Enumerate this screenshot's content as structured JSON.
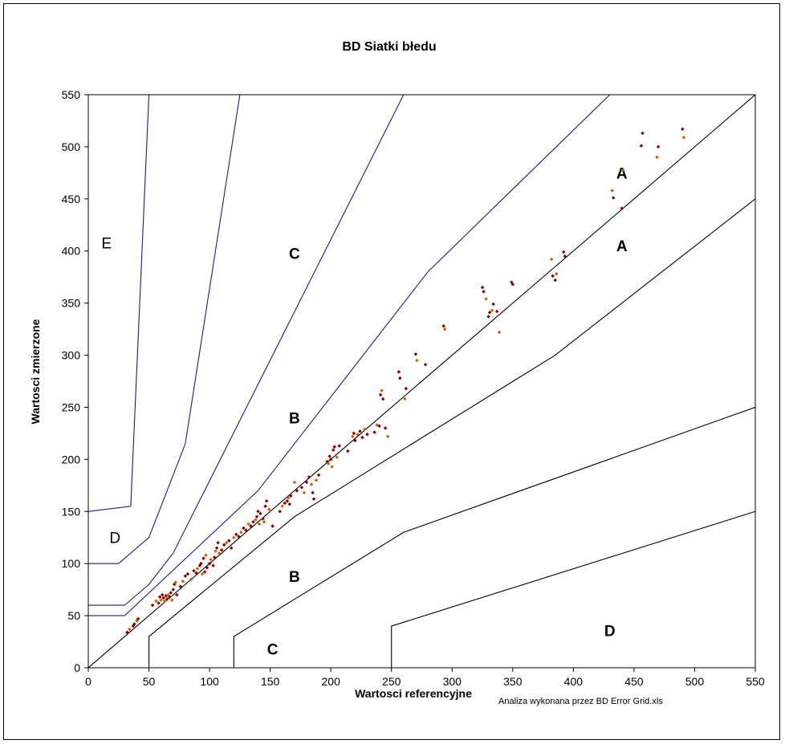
{
  "chart_data": {
    "type": "scatter",
    "title": "BD Siatki błedu",
    "xlabel": "Wartosci referencyjne",
    "ylabel": "Wartosci zmierzone",
    "footnote": "Analiza wykonana przez BD Error Grid.xls",
    "xlim": [
      0,
      550
    ],
    "ylim": [
      0,
      550
    ],
    "xticks": [
      0,
      50,
      100,
      150,
      200,
      250,
      300,
      350,
      400,
      450,
      500,
      550
    ],
    "yticks": [
      0,
      50,
      100,
      150,
      200,
      250,
      300,
      350,
      400,
      450,
      500,
      550
    ],
    "colors": {
      "grid_blue": "#1a1a8c",
      "grid_black": "#000000",
      "point_dark": "#8b0000",
      "point_light": "#c86400"
    },
    "zone_lines": [
      {
        "name": "upper-e",
        "color": "blue",
        "points": [
          [
            0,
            150
          ],
          [
            35,
            155
          ],
          [
            50,
            550
          ]
        ]
      },
      {
        "name": "upper-d",
        "color": "blue",
        "points": [
          [
            0,
            100
          ],
          [
            25,
            100
          ],
          [
            50,
            125
          ],
          [
            80,
            215
          ],
          [
            125,
            550
          ]
        ]
      },
      {
        "name": "upper-c",
        "color": "blue",
        "points": [
          [
            0,
            60
          ],
          [
            30,
            60
          ],
          [
            50,
            80
          ],
          [
            70,
            110
          ],
          [
            260,
            550
          ]
        ]
      },
      {
        "name": "upper-b",
        "color": "blue",
        "points": [
          [
            0,
            50
          ],
          [
            30,
            50
          ],
          [
            140,
            170
          ],
          [
            280,
            380
          ],
          [
            430,
            550
          ]
        ]
      },
      {
        "name": "upper-a",
        "color": "black",
        "points": [
          [
            0,
            0
          ],
          [
            550,
            550
          ]
        ]
      },
      {
        "name": "lower-a",
        "color": "black",
        "points": [
          [
            50,
            0
          ],
          [
            50,
            30
          ],
          [
            170,
            145
          ],
          [
            385,
            300
          ],
          [
            550,
            450
          ]
        ]
      },
      {
        "name": "lower-b",
        "color": "black",
        "points": [
          [
            120,
            0
          ],
          [
            120,
            30
          ],
          [
            260,
            130
          ],
          [
            550,
            250
          ]
        ]
      },
      {
        "name": "lower-c",
        "color": "black",
        "points": [
          [
            120,
            0
          ],
          [
            250,
            0
          ]
        ]
      },
      {
        "name": "lower-d",
        "color": "black",
        "points": [
          [
            250,
            0
          ],
          [
            250,
            40
          ],
          [
            550,
            150
          ]
        ]
      }
    ],
    "zone_labels": [
      {
        "text": "E",
        "x": 15,
        "y": 408,
        "bold": false
      },
      {
        "text": "D",
        "x": 22,
        "y": 125,
        "bold": false
      },
      {
        "text": "C",
        "x": 170,
        "y": 398,
        "bold": true
      },
      {
        "text": "B",
        "x": 170,
        "y": 240,
        "bold": true
      },
      {
        "text": "A",
        "x": 440,
        "y": 475,
        "bold": true
      },
      {
        "text": "A",
        "x": 440,
        "y": 405,
        "bold": true
      },
      {
        "text": "B",
        "x": 170,
        "y": 88,
        "bold": true
      },
      {
        "text": "C",
        "x": 152,
        "y": 18,
        "bold": true
      },
      {
        "text": "D",
        "x": 430,
        "y": 36,
        "bold": true
      }
    ],
    "series": [
      {
        "points": [
          [
            32,
            34
          ],
          [
            34,
            37
          ],
          [
            37,
            40
          ],
          [
            38,
            42
          ],
          [
            40,
            45
          ],
          [
            41,
            47
          ],
          [
            53,
            60
          ],
          [
            56,
            64
          ],
          [
            58,
            62
          ],
          [
            59,
            68
          ],
          [
            60,
            65
          ],
          [
            61,
            70
          ],
          [
            62,
            67
          ],
          [
            63,
            64
          ],
          [
            64,
            69
          ],
          [
            65,
            66
          ],
          [
            66,
            70
          ],
          [
            67,
            68
          ],
          [
            68,
            72
          ],
          [
            69,
            65
          ],
          [
            70,
            75
          ],
          [
            71,
            80
          ],
          [
            72,
            82
          ],
          [
            73,
            70
          ],
          [
            76,
            78
          ],
          [
            78,
            83
          ],
          [
            80,
            88
          ],
          [
            82,
            90
          ],
          [
            85,
            85
          ],
          [
            87,
            93
          ],
          [
            89,
            91
          ],
          [
            90,
            95
          ],
          [
            92,
            98
          ],
          [
            93,
            100
          ],
          [
            94,
            90
          ],
          [
            95,
            105
          ],
          [
            96,
            92
          ],
          [
            97,
            108
          ],
          [
            98,
            96
          ],
          [
            100,
            100
          ],
          [
            101,
            104
          ],
          [
            103,
            98
          ],
          [
            104,
            106
          ],
          [
            105,
            112
          ],
          [
            106,
            115
          ],
          [
            107,
            120
          ],
          [
            108,
            110
          ],
          [
            110,
            113
          ],
          [
            112,
            118
          ],
          [
            114,
            120
          ],
          [
            116,
            122
          ],
          [
            118,
            115
          ],
          [
            120,
            125
          ],
          [
            122,
            128
          ],
          [
            124,
            126
          ],
          [
            126,
            130
          ],
          [
            128,
            134
          ],
          [
            130,
            132
          ],
          [
            132,
            138
          ],
          [
            134,
            136
          ],
          [
            136,
            140
          ],
          [
            138,
            142
          ],
          [
            139,
            145
          ],
          [
            140,
            150
          ],
          [
            141,
            138
          ],
          [
            142,
            148
          ],
          [
            144,
            143
          ],
          [
            145,
            140
          ],
          [
            146,
            155
          ],
          [
            147,
            160
          ],
          [
            149,
            152
          ],
          [
            152,
            136
          ],
          [
            158,
            150
          ],
          [
            160,
            155
          ],
          [
            162,
            158
          ],
          [
            164,
            160
          ],
          [
            165,
            163
          ],
          [
            166,
            157
          ],
          [
            167,
            165
          ],
          [
            170,
            178
          ],
          [
            172,
            170
          ],
          [
            176,
            173
          ],
          [
            178,
            168
          ],
          [
            180,
            178
          ],
          [
            182,
            183
          ],
          [
            184,
            176
          ],
          [
            185,
            168
          ],
          [
            186,
            162
          ],
          [
            188,
            180
          ],
          [
            190,
            185
          ],
          [
            197,
            198
          ],
          [
            198,
            196
          ],
          [
            199,
            203
          ],
          [
            200,
            200
          ],
          [
            201,
            193
          ],
          [
            202,
            209
          ],
          [
            203,
            212
          ],
          [
            205,
            202
          ],
          [
            207,
            213
          ],
          [
            214,
            208
          ],
          [
            218,
            222
          ],
          [
            219,
            225
          ],
          [
            220,
            218
          ],
          [
            222,
            224
          ],
          [
            224,
            227
          ],
          [
            226,
            221
          ],
          [
            228,
            229
          ],
          [
            230,
            224
          ],
          [
            236,
            226
          ],
          [
            238,
            233
          ],
          [
            240,
            232
          ],
          [
            241,
            262
          ],
          [
            242,
            266
          ],
          [
            243,
            258
          ],
          [
            245,
            230
          ],
          [
            247,
            222
          ],
          [
            256,
            284
          ],
          [
            257,
            278
          ],
          [
            261,
            258
          ],
          [
            262,
            268
          ],
          [
            270,
            301
          ],
          [
            271,
            295
          ],
          [
            278,
            291
          ],
          [
            293,
            328
          ],
          [
            294,
            325
          ],
          [
            325,
            365
          ],
          [
            326,
            361
          ],
          [
            328,
            354
          ],
          [
            330,
            337
          ],
          [
            331,
            341
          ],
          [
            333,
            343
          ],
          [
            334,
            349
          ],
          [
            337,
            342
          ],
          [
            339,
            322
          ],
          [
            349,
            370
          ],
          [
            350,
            368
          ],
          [
            382,
            392
          ],
          [
            383,
            376
          ],
          [
            385,
            372
          ],
          [
            386,
            378
          ],
          [
            392,
            399
          ],
          [
            393,
            395
          ],
          [
            432,
            458
          ],
          [
            433,
            451
          ],
          [
            440,
            441
          ],
          [
            441,
            478
          ],
          [
            456,
            501
          ],
          [
            457,
            513
          ],
          [
            469,
            490
          ],
          [
            470,
            500
          ],
          [
            490,
            517
          ],
          [
            491,
            509
          ]
        ]
      }
    ]
  }
}
